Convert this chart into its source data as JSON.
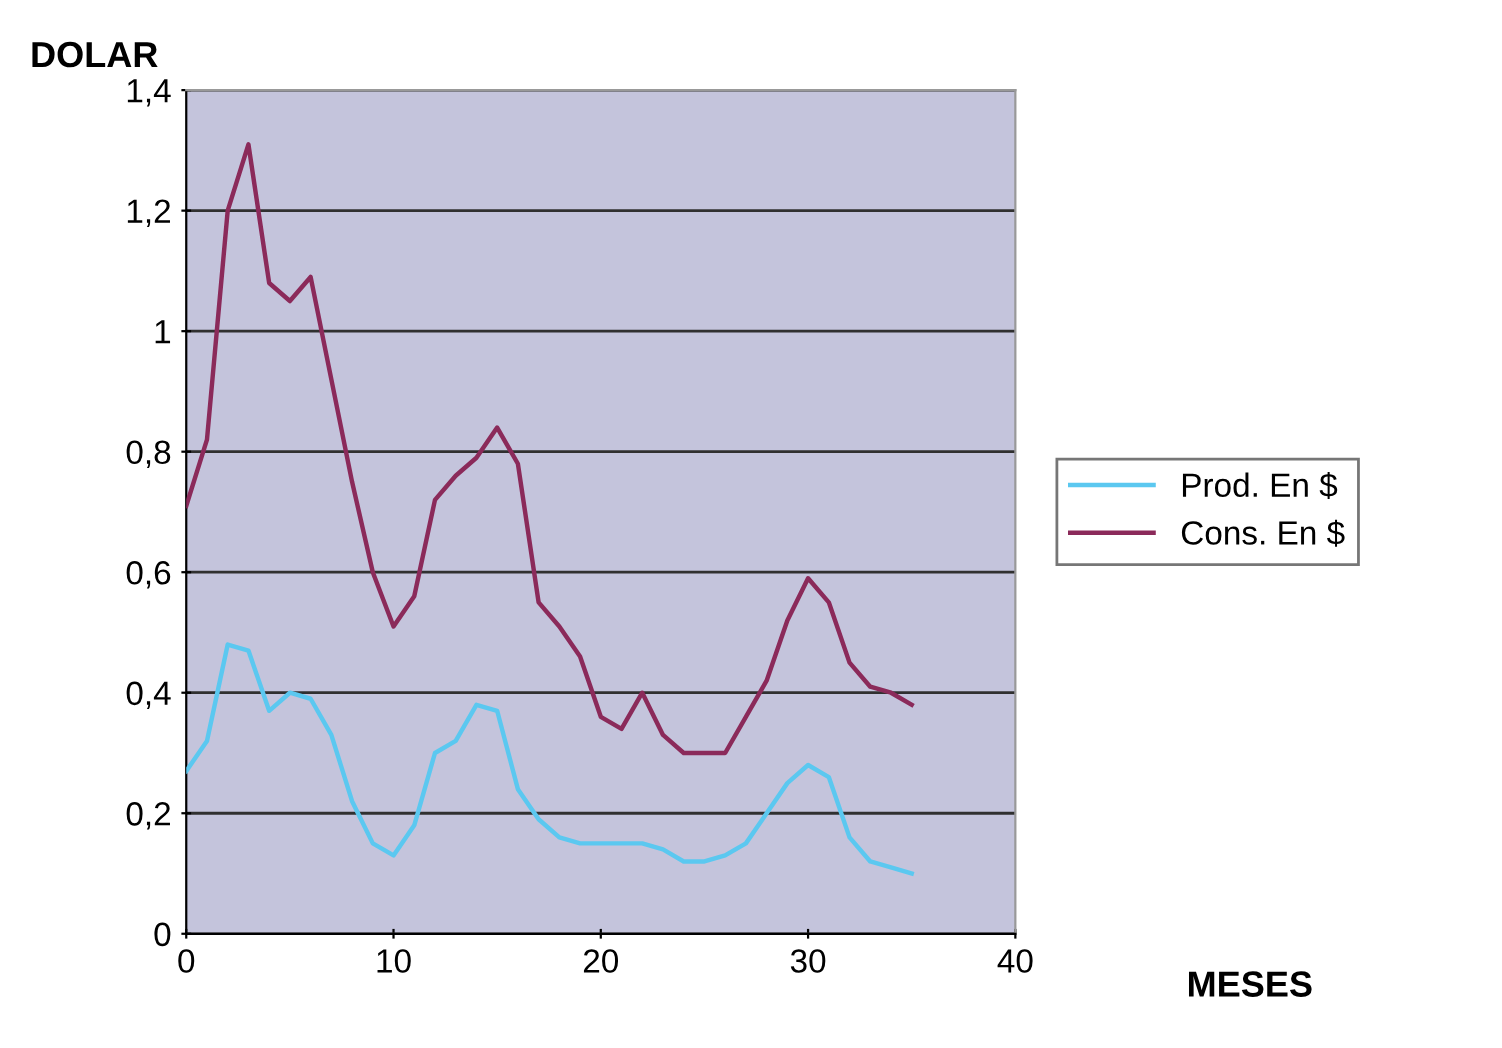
{
  "chart_data": {
    "type": "line",
    "xlabel": "MESES",
    "ylabel": "DOLAR",
    "x": [
      0,
      1,
      2,
      3,
      4,
      5,
      6,
      7,
      8,
      9,
      10,
      11,
      12,
      13,
      14,
      15,
      16,
      17,
      18,
      19,
      20,
      21,
      22,
      23,
      24,
      25,
      26,
      27,
      28,
      29,
      30,
      31,
      32,
      33,
      34,
      35
    ],
    "series": [
      {
        "name": "Prod. En $",
        "color": "#5bc8f0",
        "values": [
          0.27,
          0.32,
          0.48,
          0.47,
          0.37,
          0.4,
          0.39,
          0.33,
          0.22,
          0.15,
          0.13,
          0.18,
          0.3,
          0.32,
          0.38,
          0.37,
          0.24,
          0.19,
          0.16,
          0.15,
          0.15,
          0.15,
          0.15,
          0.14,
          0.12,
          0.12,
          0.13,
          0.15,
          0.2,
          0.25,
          0.28,
          0.26,
          0.16,
          0.12,
          0.11,
          0.1
        ]
      },
      {
        "name": "Cons. En $",
        "color": "#8b2a5a",
        "values": [
          0.71,
          0.82,
          1.2,
          1.31,
          1.08,
          1.05,
          1.09,
          0.92,
          0.75,
          0.6,
          0.51,
          0.56,
          0.72,
          0.76,
          0.79,
          0.84,
          0.78,
          0.55,
          0.51,
          0.46,
          0.36,
          0.34,
          0.4,
          0.33,
          0.3,
          0.3,
          0.3,
          0.36,
          0.42,
          0.52,
          0.59,
          0.55,
          0.45,
          0.41,
          0.4,
          0.38
        ]
      }
    ],
    "xlim": [
      0,
      40
    ],
    "xticks": [
      0,
      10,
      20,
      30,
      40
    ],
    "ylim": [
      0,
      1.4
    ],
    "yticks": [
      0,
      {
        "value": 0.2,
        "label": "0,2"
      },
      {
        "value": 0.4,
        "label": "0,4"
      },
      {
        "value": 0.6,
        "label": "0,6"
      },
      {
        "value": 0.8,
        "label": "0,8"
      },
      1,
      {
        "value": 1.2,
        "label": "1,2"
      },
      {
        "value": 1.4,
        "label": "1,4"
      }
    ],
    "grid": "y",
    "legend": "right",
    "marker": "none",
    "line_style": "solid"
  }
}
